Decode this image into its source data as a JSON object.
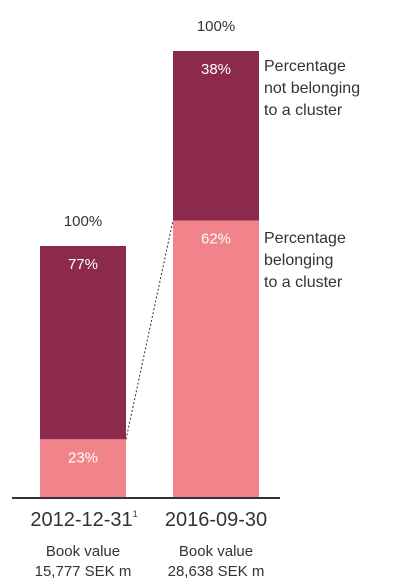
{
  "chart_data": {
    "type": "bar",
    "stacked": true,
    "normalized_to_percent": true,
    "categories": [
      "2012-12-31",
      "2016-09-30"
    ],
    "category_footnotes": [
      "1",
      ""
    ],
    "totals_labels": [
      "100%",
      "100%"
    ],
    "series": [
      {
        "name": "Percentage belonging to a cluster",
        "legend_lines": [
          "Percentage",
          "belonging",
          "to a cluster"
        ],
        "values": [
          23,
          62
        ],
        "value_labels": [
          "23%",
          "62%"
        ],
        "color": "#f0848a"
      },
      {
        "name": "Percentage not belonging to a cluster",
        "legend_lines": [
          "Percentage",
          "not belonging",
          "to a cluster"
        ],
        "values": [
          77,
          38
        ],
        "value_labels": [
          "77%",
          "38%"
        ],
        "color": "#8c2a4d"
      }
    ],
    "book_values": [
      {
        "label": "Book value",
        "amount": "15,777 SEK m"
      },
      {
        "label": "Book value",
        "amount": "28,638 SEK m"
      }
    ],
    "connector_line": "dotted line linking top of the belonging segment of the first bar to the second bar",
    "axis_color": "#333333",
    "text_color": "#333333"
  }
}
